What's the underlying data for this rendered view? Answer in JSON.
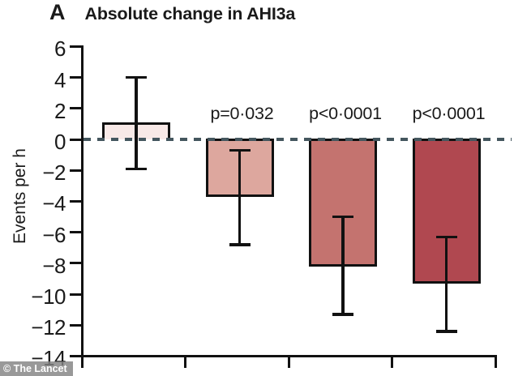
{
  "title": {
    "panel_letter": "A",
    "text": "Absolute change in AHI3a"
  },
  "watermark": "© The Lancet",
  "colors": {
    "axis": "#111111",
    "text": "#1a1a1a",
    "zero_line_dash": "#44565e",
    "bar_fills": [
      "#f8e9e7",
      "#dda79e",
      "#c4736f",
      "#b04850"
    ],
    "bar_border": "#111111",
    "watermark_bg": "#828282",
    "watermark_text": "#ffffff"
  },
  "chart_data": {
    "type": "bar",
    "title": "Absolute change in AHI3a",
    "panel_label": "A",
    "xlabel": "",
    "ylabel": "Events per h",
    "ylim": [
      -14,
      6
    ],
    "yticks": [
      6,
      4,
      2,
      0,
      -2,
      -4,
      -6,
      -8,
      -10,
      -12,
      -14
    ],
    "ytick_labels": [
      "6",
      "4",
      "2",
      "0",
      "−2",
      "−4",
      "−6",
      "−8",
      "−10",
      "−12",
      "−14"
    ],
    "grid": false,
    "legend": false,
    "zero_line": {
      "value": 0,
      "style": "dashed",
      "color": "#44565e"
    },
    "categories": [
      "",
      "",
      "",
      ""
    ],
    "bars": [
      {
        "value": 1.1,
        "ci_low": -1.9,
        "ci_high": 4.0,
        "p_label": "",
        "fill": "#f8e9e7"
      },
      {
        "value": -3.7,
        "ci_low": -6.8,
        "ci_high": -0.7,
        "p_label": "p=0·032",
        "fill": "#dda79e"
      },
      {
        "value": -8.2,
        "ci_low": -11.3,
        "ci_high": -5.0,
        "p_label": "p<0·0001",
        "fill": "#c4736f"
      },
      {
        "value": -9.3,
        "ci_low": -12.4,
        "ci_high": -6.3,
        "p_label": "p<0·0001",
        "fill": "#b04850"
      }
    ]
  }
}
